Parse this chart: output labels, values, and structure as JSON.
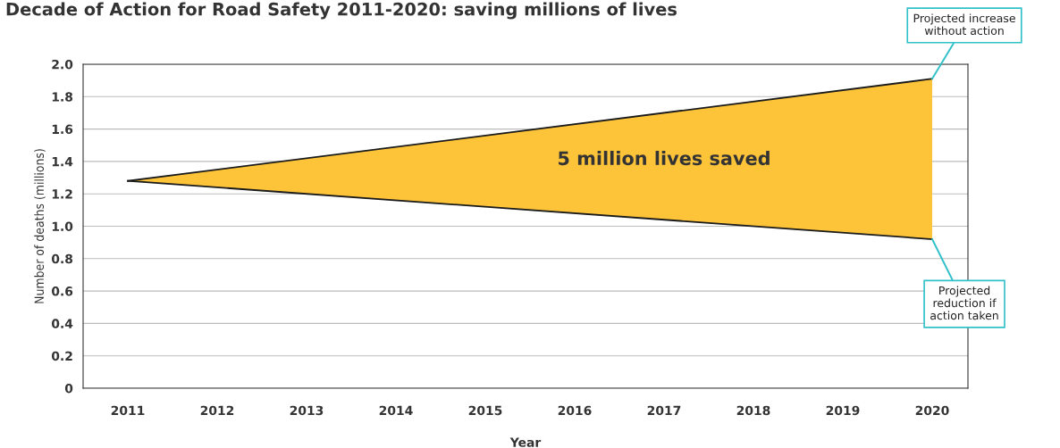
{
  "chart_data": {
    "type": "line",
    "title": "Decade of Action for Road Safety 2011-2020: saving millions of lives",
    "xlabel": "Year",
    "x": [
      2011,
      2020
    ],
    "ylabel": "Number of deaths (millions)",
    "series": [
      {
        "color": "#1a1a1a",
        "values": [
          1.28,
          1.91
        ],
        "lower": [
          1.28,
          0.92
        ],
        "upper": [
          1.28,
          1.91
        ]
      },
      {
        "color": "#1a1a1a",
        "values": [
          1.28,
          0.92
        ]
      }
    ],
    "annotations": [
      "5 million lives saved",
      {
        "text": "Projected increase\nwithout action",
        "x": 2020,
        "y": 1.91
      },
      {
        "text": "Projected\nreduction if\naction taken",
        "x": 2020,
        "y": 0.92
      }
    ],
    "xlim": [
      2010.5,
      2020.4
    ],
    "xticks": [
      2011,
      2012,
      2013,
      2014,
      2015,
      2016,
      2017,
      2018,
      2019,
      2020
    ],
    "ylim": [
      0,
      2.0
    ],
    "yticks": [
      0,
      0.2,
      0.4,
      0.6,
      0.8,
      {
        "value": 1.0,
        "label": "1.0"
      },
      1.2,
      1.4,
      1.6,
      1.8,
      {
        "value": 2.0,
        "label": "2.0"
      }
    ],
    "grid": "y",
    "legend": false,
    "marker": "none",
    "line_style": "solid"
  }
}
